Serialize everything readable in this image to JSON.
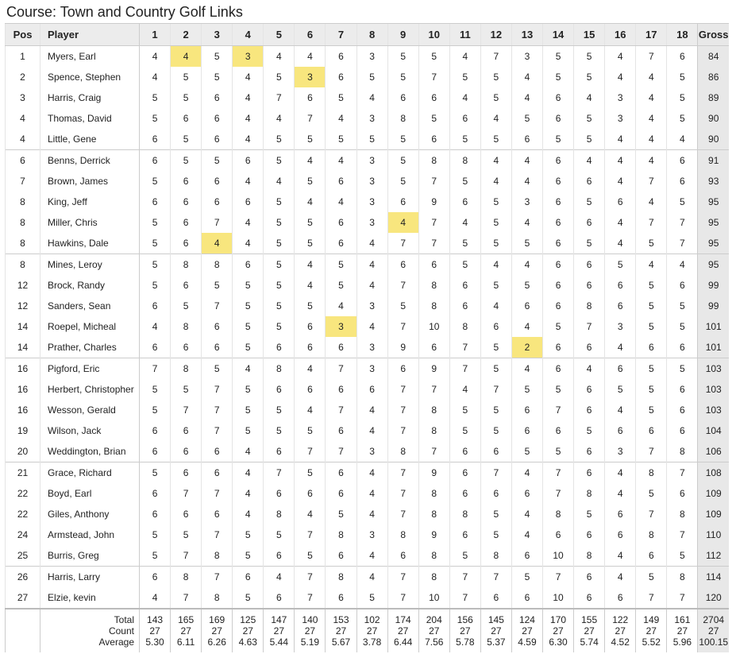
{
  "title": "Course: Town and Country Golf Links",
  "header": {
    "pos": "Pos",
    "player": "Player",
    "holes": [
      "1",
      "2",
      "3",
      "4",
      "5",
      "6",
      "7",
      "8",
      "9",
      "10",
      "11",
      "12",
      "13",
      "14",
      "15",
      "16",
      "17",
      "18"
    ],
    "gross": "Gross"
  },
  "rows": [
    {
      "pos": "1",
      "player": "Myers, Earl",
      "scores": [
        "4",
        "4",
        "5",
        "3",
        "4",
        "4",
        "6",
        "3",
        "5",
        "5",
        "4",
        "7",
        "3",
        "5",
        "5",
        "4",
        "7",
        "6"
      ],
      "gross": "84",
      "highlight": [
        1,
        3
      ]
    },
    {
      "pos": "2",
      "player": "Spence, Stephen",
      "scores": [
        "4",
        "5",
        "5",
        "4",
        "5",
        "3",
        "6",
        "5",
        "5",
        "7",
        "5",
        "5",
        "4",
        "5",
        "5",
        "4",
        "4",
        "5"
      ],
      "gross": "86",
      "highlight": [
        5
      ]
    },
    {
      "pos": "3",
      "player": "Harris, Craig",
      "scores": [
        "5",
        "5",
        "6",
        "4",
        "7",
        "6",
        "5",
        "4",
        "6",
        "6",
        "4",
        "5",
        "4",
        "6",
        "4",
        "3",
        "4",
        "5"
      ],
      "gross": "89"
    },
    {
      "pos": "4",
      "player": "Thomas, David",
      "scores": [
        "5",
        "6",
        "6",
        "4",
        "4",
        "7",
        "4",
        "3",
        "8",
        "5",
        "6",
        "4",
        "5",
        "6",
        "5",
        "3",
        "4",
        "5"
      ],
      "gross": "90"
    },
    {
      "pos": "4",
      "player": "Little, Gene",
      "scores": [
        "6",
        "5",
        "6",
        "4",
        "5",
        "5",
        "5",
        "5",
        "5",
        "6",
        "5",
        "5",
        "6",
        "5",
        "5",
        "4",
        "4",
        "4"
      ],
      "gross": "90"
    },
    {
      "pos": "6",
      "player": "Benns, Derrick",
      "scores": [
        "6",
        "5",
        "5",
        "6",
        "5",
        "4",
        "4",
        "3",
        "5",
        "8",
        "8",
        "4",
        "4",
        "6",
        "4",
        "4",
        "4",
        "6"
      ],
      "gross": "91"
    },
    {
      "pos": "7",
      "player": "Brown, James",
      "scores": [
        "5",
        "6",
        "6",
        "4",
        "4",
        "5",
        "6",
        "3",
        "5",
        "7",
        "5",
        "4",
        "4",
        "6",
        "6",
        "4",
        "7",
        "6"
      ],
      "gross": "93"
    },
    {
      "pos": "8",
      "player": "King, Jeff",
      "scores": [
        "6",
        "6",
        "6",
        "6",
        "5",
        "4",
        "4",
        "3",
        "6",
        "9",
        "6",
        "5",
        "3",
        "6",
        "5",
        "6",
        "4",
        "5"
      ],
      "gross": "95"
    },
    {
      "pos": "8",
      "player": "Miller, Chris",
      "scores": [
        "5",
        "6",
        "7",
        "4",
        "5",
        "5",
        "6",
        "3",
        "4",
        "7",
        "4",
        "5",
        "4",
        "6",
        "6",
        "4",
        "7",
        "7"
      ],
      "gross": "95",
      "highlight": [
        8
      ]
    },
    {
      "pos": "8",
      "player": "Hawkins, Dale",
      "scores": [
        "5",
        "6",
        "4",
        "4",
        "5",
        "5",
        "6",
        "4",
        "7",
        "7",
        "5",
        "5",
        "5",
        "6",
        "5",
        "4",
        "5",
        "7"
      ],
      "gross": "95",
      "highlight": [
        2
      ]
    },
    {
      "pos": "8",
      "player": "Mines, Leroy",
      "scores": [
        "5",
        "8",
        "8",
        "6",
        "5",
        "4",
        "5",
        "4",
        "6",
        "6",
        "5",
        "4",
        "4",
        "6",
        "6",
        "5",
        "4",
        "4"
      ],
      "gross": "95"
    },
    {
      "pos": "12",
      "player": "Brock, Randy",
      "scores": [
        "5",
        "6",
        "5",
        "5",
        "5",
        "4",
        "5",
        "4",
        "7",
        "8",
        "6",
        "5",
        "5",
        "6",
        "6",
        "6",
        "5",
        "6"
      ],
      "gross": "99"
    },
    {
      "pos": "12",
      "player": "Sanders, Sean",
      "scores": [
        "6",
        "5",
        "7",
        "5",
        "5",
        "5",
        "4",
        "3",
        "5",
        "8",
        "6",
        "4",
        "6",
        "6",
        "8",
        "6",
        "5",
        "5"
      ],
      "gross": "99"
    },
    {
      "pos": "14",
      "player": "Roepel, Micheal",
      "scores": [
        "4",
        "8",
        "6",
        "5",
        "5",
        "6",
        "3",
        "4",
        "7",
        "10",
        "8",
        "6",
        "4",
        "5",
        "7",
        "3",
        "5",
        "5"
      ],
      "gross": "101",
      "highlight": [
        6
      ]
    },
    {
      "pos": "14",
      "player": "Prather, Charles",
      "scores": [
        "6",
        "6",
        "6",
        "5",
        "6",
        "6",
        "6",
        "3",
        "9",
        "6",
        "7",
        "5",
        "2",
        "6",
        "6",
        "4",
        "6",
        "6"
      ],
      "gross": "101",
      "highlight": [
        12
      ]
    },
    {
      "pos": "16",
      "player": "Pigford, Eric",
      "scores": [
        "7",
        "8",
        "5",
        "4",
        "8",
        "4",
        "7",
        "3",
        "6",
        "9",
        "7",
        "5",
        "4",
        "6",
        "4",
        "6",
        "5",
        "5"
      ],
      "gross": "103"
    },
    {
      "pos": "16",
      "player": "Herbert, Christopher",
      "scores": [
        "5",
        "5",
        "7",
        "5",
        "6",
        "6",
        "6",
        "6",
        "7",
        "7",
        "4",
        "7",
        "5",
        "5",
        "6",
        "5",
        "5",
        "6"
      ],
      "gross": "103"
    },
    {
      "pos": "16",
      "player": "Wesson, Gerald",
      "scores": [
        "5",
        "7",
        "7",
        "5",
        "5",
        "4",
        "7",
        "4",
        "7",
        "8",
        "5",
        "5",
        "6",
        "7",
        "6",
        "4",
        "5",
        "6"
      ],
      "gross": "103"
    },
    {
      "pos": "19",
      "player": "Wilson, Jack",
      "scores": [
        "6",
        "6",
        "7",
        "5",
        "5",
        "5",
        "6",
        "4",
        "7",
        "8",
        "5",
        "5",
        "6",
        "6",
        "5",
        "6",
        "6",
        "6"
      ],
      "gross": "104"
    },
    {
      "pos": "20",
      "player": "Weddington, Brian",
      "scores": [
        "6",
        "6",
        "6",
        "4",
        "6",
        "7",
        "7",
        "3",
        "8",
        "7",
        "6",
        "6",
        "5",
        "5",
        "6",
        "3",
        "7",
        "8"
      ],
      "gross": "106"
    },
    {
      "pos": "21",
      "player": "Grace, Richard",
      "scores": [
        "5",
        "6",
        "6",
        "4",
        "7",
        "5",
        "6",
        "4",
        "7",
        "9",
        "6",
        "7",
        "4",
        "7",
        "6",
        "4",
        "8",
        "7"
      ],
      "gross": "108"
    },
    {
      "pos": "22",
      "player": "Boyd, Earl",
      "scores": [
        "6",
        "7",
        "7",
        "4",
        "6",
        "6",
        "6",
        "4",
        "7",
        "8",
        "6",
        "6",
        "6",
        "7",
        "8",
        "4",
        "5",
        "6"
      ],
      "gross": "109"
    },
    {
      "pos": "22",
      "player": "Giles, Anthony",
      "scores": [
        "6",
        "6",
        "6",
        "4",
        "8",
        "4",
        "5",
        "4",
        "7",
        "8",
        "8",
        "5",
        "4",
        "8",
        "5",
        "6",
        "7",
        "8"
      ],
      "gross": "109"
    },
    {
      "pos": "24",
      "player": "Armstead, John",
      "scores": [
        "5",
        "5",
        "7",
        "5",
        "5",
        "7",
        "8",
        "3",
        "8",
        "9",
        "6",
        "5",
        "4",
        "6",
        "6",
        "6",
        "8",
        "7"
      ],
      "gross": "110"
    },
    {
      "pos": "25",
      "player": "Burris, Greg",
      "scores": [
        "5",
        "7",
        "8",
        "5",
        "6",
        "5",
        "6",
        "4",
        "6",
        "8",
        "5",
        "8",
        "6",
        "10",
        "8",
        "4",
        "6",
        "5"
      ],
      "gross": "112"
    },
    {
      "pos": "26",
      "player": "Harris, Larry",
      "scores": [
        "6",
        "8",
        "7",
        "6",
        "4",
        "7",
        "8",
        "4",
        "7",
        "8",
        "7",
        "7",
        "5",
        "7",
        "6",
        "4",
        "5",
        "8"
      ],
      "gross": "114"
    },
    {
      "pos": "27",
      "player": "Elzie, kevin",
      "scores": [
        "4",
        "7",
        "8",
        "5",
        "6",
        "7",
        "6",
        "5",
        "7",
        "10",
        "7",
        "6",
        "6",
        "10",
        "6",
        "6",
        "7",
        "7"
      ],
      "gross": "120"
    }
  ],
  "footer": {
    "labels": [
      "Total",
      "Count",
      "Average"
    ],
    "total": [
      "143",
      "165",
      "169",
      "125",
      "147",
      "140",
      "153",
      "102",
      "174",
      "204",
      "156",
      "145",
      "124",
      "170",
      "155",
      "122",
      "149",
      "161",
      "2704"
    ],
    "count": [
      "27",
      "27",
      "27",
      "27",
      "27",
      "27",
      "27",
      "27",
      "27",
      "27",
      "27",
      "27",
      "27",
      "27",
      "27",
      "27",
      "27",
      "27",
      "27"
    ],
    "average": [
      "5.30",
      "6.11",
      "6.26",
      "4.63",
      "5.44",
      "5.19",
      "5.67",
      "3.78",
      "6.44",
      "7.56",
      "5.78",
      "5.37",
      "4.59",
      "6.30",
      "5.74",
      "4.52",
      "5.52",
      "5.96",
      "100.15"
    ]
  }
}
